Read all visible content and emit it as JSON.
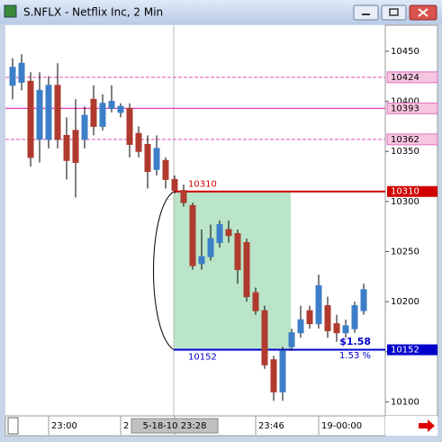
{
  "window_title": "S.NFLX - Netflix Inc, 2 Min",
  "chart_data": {
    "type": "candlestick",
    "categories": [
      null,
      null,
      null,
      null,
      "23:00",
      null,
      null,
      null,
      null,
      null,
      null,
      null,
      "2",
      null,
      null,
      null,
      null,
      null,
      "5-18-10 23:28",
      null,
      null,
      null,
      null,
      null,
      null,
      null,
      null,
      "23:46",
      null,
      null,
      null,
      null,
      null,
      null,
      "19-00:00",
      null,
      null,
      null,
      null,
      null
    ],
    "open": [
      104.16,
      104.19,
      104.2,
      103.62,
      103.62,
      104.16,
      103.66,
      103.71,
      103.62,
      104.02,
      103.75,
      103.93,
      103.89,
      103.93,
      103.68,
      103.57,
      103.32,
      103.41,
      103.22,
      103.11,
      102.96,
      102.38,
      102.45,
      102.59,
      102.72,
      102.68,
      102.59,
      102.09,
      101.91,
      101.42,
      101.1,
      101.55,
      101.69,
      101.91,
      101.78,
      101.96,
      101.78,
      101.69,
      101.73,
      101.91
    ],
    "high": [
      104.43,
      104.47,
      104.29,
      104.29,
      104.25,
      104.38,
      103.84,
      104.02,
      103.95,
      104.16,
      104.07,
      104.16,
      103.98,
      103.98,
      103.75,
      103.66,
      103.66,
      103.44,
      103.26,
      103.17,
      102.99,
      102.72,
      102.77,
      102.81,
      102.81,
      102.72,
      102.63,
      102.14,
      101.96,
      101.46,
      101.55,
      101.73,
      101.96,
      101.96,
      102.27,
      102.05,
      101.87,
      101.82,
      102.0,
      102.18
    ],
    "low": [
      104.02,
      104.11,
      103.35,
      103.39,
      103.53,
      103.53,
      103.22,
      103.04,
      103.53,
      103.66,
      103.71,
      103.89,
      103.84,
      103.44,
      103.44,
      103.13,
      103.26,
      103.13,
      103.08,
      102.95,
      102.32,
      102.32,
      102.41,
      102.54,
      102.59,
      102.18,
      102.0,
      101.87,
      101.33,
      101.01,
      101.01,
      101.51,
      101.64,
      101.73,
      101.73,
      101.64,
      101.6,
      101.64,
      101.69,
      101.87
    ],
    "close": [
      104.34,
      104.38,
      103.44,
      104.11,
      104.16,
      103.62,
      103.41,
      103.39,
      103.86,
      103.75,
      103.98,
      104.0,
      103.95,
      103.57,
      103.5,
      103.3,
      103.53,
      103.22,
      103.11,
      102.99,
      102.36,
      102.45,
      102.63,
      102.77,
      102.66,
      102.32,
      102.05,
      101.91,
      101.37,
      101.1,
      101.51,
      101.69,
      101.82,
      101.78,
      102.16,
      101.71,
      101.69,
      101.76,
      101.96,
      102.12
    ],
    "up_color": "#3c7fc8",
    "down_color": "#b03a2e",
    "ylim": [
      100.86,
      104.76
    ],
    "yticks": [
      {
        "value": 101.0,
        "label": "10100"
      },
      {
        "value": 101.5,
        "label": "10150"
      },
      {
        "value": 102.0,
        "label": "10200"
      },
      {
        "value": 102.5,
        "label": "10250"
      },
      {
        "value": 103.0,
        "label": "10300"
      },
      {
        "value": 103.5,
        "label": "10350"
      },
      {
        "value": 104.0,
        "label": "10400"
      },
      {
        "value": 104.5,
        "label": "10450"
      }
    ],
    "levels": [
      {
        "value": 104.24,
        "label": "10424",
        "color": "#e070c0",
        "style": "dashed"
      },
      {
        "value": 103.93,
        "label": "10393",
        "color": "#e040b0",
        "style": "solid"
      },
      {
        "value": 103.62,
        "label": "10362",
        "color": "#e070c0",
        "style": "dashed"
      },
      {
        "value": 103.1,
        "label": "10310",
        "color": "#d00000",
        "style": "solid"
      },
      {
        "value": 101.52,
        "label": "10152",
        "color": "#0000cc",
        "style": "solid"
      }
    ],
    "annotations": {
      "change": "$1.58",
      "percent": "1.53 %"
    }
  }
}
